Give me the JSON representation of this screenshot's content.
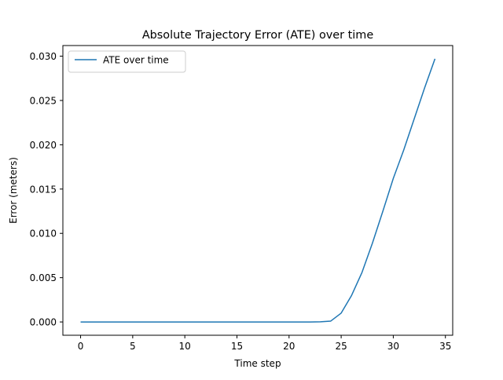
{
  "chart_data": {
    "type": "line",
    "title": "Absolute Trajectory Error (ATE) over time",
    "xlabel": "Time step",
    "ylabel": "Error (meters)",
    "xlim": [
      -1.7,
      35.7
    ],
    "ylim": [
      -0.0015,
      0.0312
    ],
    "xticks": [
      0,
      5,
      10,
      15,
      20,
      25,
      30,
      35
    ],
    "xtick_labels": [
      "0",
      "5",
      "10",
      "15",
      "20",
      "25",
      "30",
      "35"
    ],
    "yticks": [
      0.0,
      0.005,
      0.01,
      0.015,
      0.02,
      0.025,
      0.03
    ],
    "ytick_labels": [
      "0.000",
      "0.005",
      "0.010",
      "0.015",
      "0.020",
      "0.025",
      "0.030"
    ],
    "grid": false,
    "legend_position": "upper-left",
    "series": [
      {
        "name": "ATE over time",
        "color": "#1f77b4",
        "x": [
          0,
          1,
          2,
          3,
          4,
          5,
          6,
          7,
          8,
          9,
          10,
          11,
          12,
          13,
          14,
          15,
          16,
          17,
          18,
          19,
          20,
          21,
          22,
          23,
          24,
          25,
          26,
          27,
          28,
          29,
          30,
          31,
          32,
          33,
          34
        ],
        "y": [
          0,
          0,
          0,
          0,
          0,
          0,
          0,
          0,
          0,
          0,
          0,
          0,
          0,
          0,
          0,
          0,
          0,
          0,
          0,
          0,
          0,
          0,
          0,
          2e-05,
          0.0001,
          0.001,
          0.003,
          0.0056,
          0.0089,
          0.0125,
          0.0162,
          0.0194,
          0.0229,
          0.0264,
          0.0297
        ]
      }
    ]
  }
}
